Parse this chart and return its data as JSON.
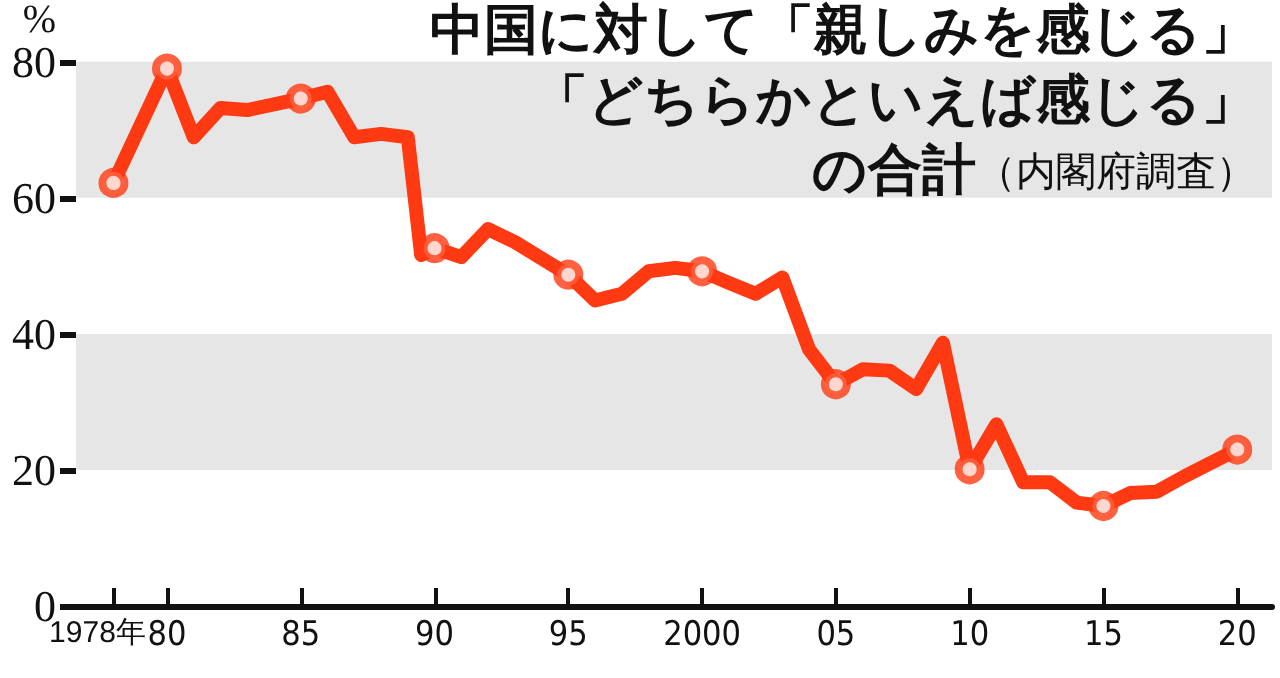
{
  "chart_data": {
    "type": "line",
    "title": "中国に対して「親しみを感じる」「どちらかといえば感じる」の合計",
    "subtitle": "（内閣府調査）",
    "ylabel": "%",
    "x": [
      1978,
      1980,
      1981,
      1982,
      1983,
      1985,
      1986,
      1987,
      1988,
      1989,
      1989.5,
      1990,
      1991,
      1992,
      1993,
      1995,
      1996,
      1997,
      1998,
      1999,
      2000,
      2001,
      2002,
      2003,
      2004,
      2005,
      2006,
      2007,
      2008,
      2009,
      2010,
      2011,
      2012,
      2013,
      2014,
      2015,
      2016,
      2017,
      2018,
      2020
    ],
    "series": [
      {
        "color": "#ff3a12",
        "marker": "none",
        "values": [
          62.2,
          79.0,
          68.9,
          73.2,
          72.9,
          74.6,
          75.6,
          68.9,
          69.4,
          68.9,
          51.6,
          52.6,
          51.3,
          55.4,
          53.5,
          48.7,
          44.9,
          45.9,
          49.2,
          49.7,
          49.2,
          47.5,
          45.9,
          48.3,
          37.7,
          32.6,
          34.8,
          34.6,
          31.9,
          38.7,
          20.1,
          26.7,
          18.2,
          18.2,
          15.2,
          14.7,
          16.6,
          16.8,
          19.0,
          23.0
        ]
      },
      {
        "type": "scatter",
        "color": "#ff3a12",
        "marker": "circle",
        "x": [
          1978,
          1980,
          1985,
          1990,
          1995,
          2000,
          2005,
          2010,
          2015,
          2020
        ],
        "values": [
          62.2,
          79.0,
          74.6,
          52.6,
          48.7,
          49.2,
          32.6,
          20.1,
          14.7,
          23.0
        ]
      }
    ],
    "xlim": [
      1976.6,
      2021.3
    ],
    "xticks": [
      {
        "value": 1978,
        "label": "1978年"
      },
      {
        "value": 1980,
        "label": "80"
      },
      {
        "value": 1985,
        "label": "85"
      },
      {
        "value": 1990,
        "label": "90"
      },
      {
        "value": 1995,
        "label": "95"
      },
      2000,
      {
        "value": 2005,
        "label": "05"
      },
      {
        "value": 2010,
        "label": "10"
      },
      {
        "value": 2015,
        "label": "15"
      },
      {
        "value": 2020,
        "label": "20"
      }
    ],
    "ylim": [
      0,
      80
    ],
    "yticks": [
      0,
      20,
      40,
      60,
      80
    ],
    "bands": [
      {
        "axis": "y",
        "from": 20,
        "to": 40,
        "color": "#e6e6e6"
      },
      {
        "axis": "y",
        "from": 60,
        "to": 80,
        "color": "#e6e6e6"
      }
    ],
    "line_style": "solid",
    "grid": false
  }
}
